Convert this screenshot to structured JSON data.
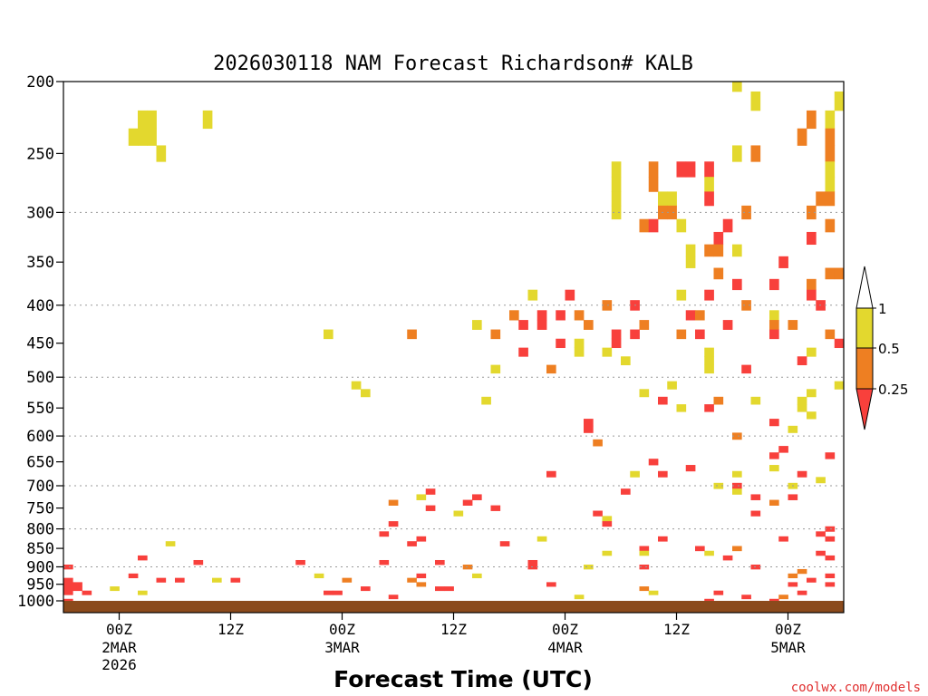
{
  "chart_data": {
    "type": "heatmap",
    "title": "2026030118 NAM Forecast Richardson# KALB",
    "xlabel": "Forecast Time (UTC)",
    "ylabel": "",
    "credit": "coolwx.com/models",
    "y_scale": "log-pressure",
    "ylim": [
      1000,
      200
    ],
    "y_ticks": [
      {
        "value": 200,
        "label": "200"
      },
      {
        "value": 250,
        "label": "250"
      },
      {
        "value": 300,
        "label": "300"
      },
      {
        "value": 350,
        "label": "350"
      },
      {
        "value": 400,
        "label": "400"
      },
      {
        "value": 450,
        "label": "450"
      },
      {
        "value": 500,
        "label": "500"
      },
      {
        "value": 550,
        "label": "550"
      },
      {
        "value": 600,
        "label": "600"
      },
      {
        "value": 650,
        "label": "650"
      },
      {
        "value": 700,
        "label": "700"
      },
      {
        "value": 750,
        "label": "750"
      },
      {
        "value": 800,
        "label": "800"
      },
      {
        "value": 850,
        "label": "850"
      },
      {
        "value": 900,
        "label": "900"
      },
      {
        "value": 950,
        "label": "950"
      },
      {
        "value": 1000,
        "label": "1000"
      }
    ],
    "gridlines_hpa": [
      300,
      400,
      500,
      600,
      700,
      800,
      900
    ],
    "xlim_hours": [
      -6,
      78
    ],
    "x_ticks": [
      {
        "hour": 0,
        "label": "00Z",
        "date": "2MAR",
        "year": "2026"
      },
      {
        "hour": 12,
        "label": "12Z",
        "date": "",
        "year": ""
      },
      {
        "hour": 24,
        "label": "00Z",
        "date": "3MAR",
        "year": ""
      },
      {
        "hour": 36,
        "label": "12Z",
        "date": "",
        "year": ""
      },
      {
        "hour": 48,
        "label": "00Z",
        "date": "4MAR",
        "year": ""
      },
      {
        "hour": 60,
        "label": "12Z",
        "date": "",
        "year": ""
      },
      {
        "hour": 72,
        "label": "00Z",
        "date": "5MAR",
        "year": ""
      }
    ],
    "legend": {
      "placement": "right",
      "bins": [
        {
          "label": ">1",
          "color": "#ffffff"
        },
        {
          "label": "0.5-1",
          "color": "#e3d82e"
        },
        {
          "label": "0.25-0.5",
          "color": "#ee7f22"
        },
        {
          "label": "<0.25",
          "color": "#f8403c"
        }
      ],
      "tick_labels": [
        "1",
        "0.5",
        "0.25"
      ]
    },
    "ground_color": "#8b4a1c",
    "cell_hours": 1,
    "level_step_hpa": 12.5,
    "levels_top_to_bottom": [
      200,
      212.5,
      225,
      237.5,
      250,
      262.5,
      275,
      287.5,
      300,
      312.5,
      325,
      337.5,
      350,
      362.5,
      375,
      387.5,
      400,
      412.5,
      425,
      437.5,
      450,
      462.5,
      475,
      487.5,
      500,
      512.5,
      525,
      537.5,
      550,
      562.5,
      575,
      587.5,
      600,
      612.5,
      625,
      637.5,
      650,
      662.5,
      675,
      687.5,
      700,
      712.5,
      725,
      737.5,
      750,
      762.5,
      775,
      787.5,
      800,
      812.5,
      825,
      837.5,
      850,
      862.5,
      875,
      887.5,
      900,
      912.5,
      925,
      937.5,
      950,
      962.5,
      975,
      987.5,
      1000
    ],
    "cell_legend": "One string per level row (top=200 hPa to bottom=1000 hPa); one character per forecast hour starting at -6h. Code: '.' = Ri > 1, '1' = 0.5-1, '2' = 0.25-0.5, '3' = <0.25",
    "rows": [
      "........................................................................1...........",
      "..........................................................................1........1",
      "........11.....1................................................................2.1",
      ".......111.....................................................................2..2",
      "..........1.............................................................1.2.......2",
      "...........................................................1...2..33.3............1",
      "...........................................................1...2.....1............1",
      "...........................................................1....11...3...........22",
      "...........................................................1....22.......2......2..",
      "..............................................................23..1....3..........2",
      "......................................................................3.........3..",
      "...................................................................1.22.1...........",
      "...................................................................1.........3......",
      "......................................................................2...........22",
      "........................................................................3...3...2..",
      "..................................................1...3...........1..3..........3...",
      "..........................................................2..3...........2.......3..",
      "................................................2..3.3.2...........32.......1......",
      "............................................1....3.3....2.....2........3....2.2....",
      "............................1........2........2............3.3....2.3.......3.....2",
      ".....................................................3.1...3.......................3",
      ".................................................3.....1..1..........1..........1...",
      "............................................................1........1.........3...",
      "..............................................1.....2................1...3.........",
      "....................................................................................",
      "...............................1.................................1.................1",
      "................................1.............................1.................1...",
      ".............................................1..................3.....2...1....1...",
      "..................................................................1..3.........1....",
      "................................................................................1...",
      "........................................................3...................3......",
      "........................................................3.....................1....",
      "........................................................................2..........",
      ".........................................................2.........................",
      ".............................................................................3.....",
      "............................................................................3.....3",
      "...............................................................3..................",
      "...................................................................3........1......",
      "....................................................3........1..3.......1......3...",
      ".................................................................................1.",
      "......................................................................1.3.....1....",
      ".......................................3....................3...........1..........",
      "......................................1.....3.............................3...3....",
      "...................................2.......3................................2......",
      ".......................................3......3.....................................",
      "..........................................1..............3................3........",
      "..........................................................1.......................",
      "...................................3......................3.......................",
      "..................................................................................3",
      "..................................3..............................................3.",
      "......................................3............1............3............3....3",
      "...........1.........................3.........3..................................",
      "..............................................................3.....3...2..........",
      "..........................................................1...1......1...........3",
      "........3..............................................................3..........3",
      "..............3..........3........3.....3.........3...............................",
      "3..........................................2......3.....1.....3...........3........",
      "...............................................................................2...",
      ".......3...................1..........3.....1.................................2...3",
      "3.........3.3...1.3...........2......2..........................................3.",
      "33....................................2.............3.........................3...3",
      "33...1..........................3.......33....................2...................",
      "3.3.....1...................33.................................1......3........3...",
      "...................................3...................1.................3...2.....",
      "3....................................................................3......3....."
    ]
  }
}
